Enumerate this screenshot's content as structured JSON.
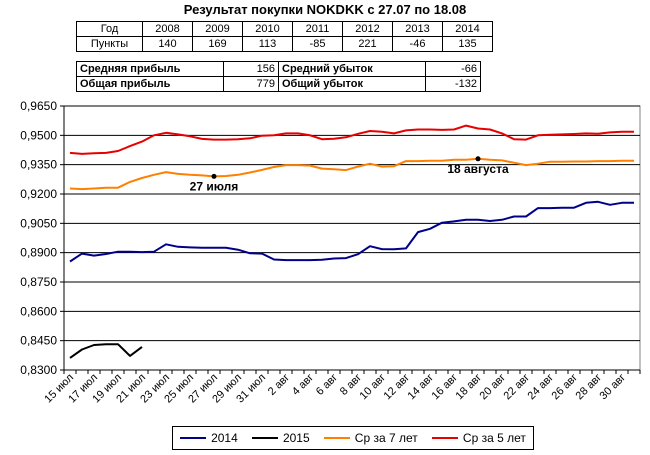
{
  "title": "Результат покупки NOKDKK с 27.07 по 18.08",
  "year_table": {
    "row_headers": [
      "Год",
      "Пункты"
    ],
    "years": [
      "2008",
      "2009",
      "2010",
      "2011",
      "2012",
      "2013",
      "2014"
    ],
    "points": [
      "140",
      "169",
      "113",
      "-85",
      "221",
      "-46",
      "135"
    ]
  },
  "stats": {
    "avg_profit_label": "Средняя прибыль",
    "avg_profit": "156",
    "avg_loss_label": "Средний убыток",
    "avg_loss": "-66",
    "total_profit_label": "Общая прибыль",
    "total_profit": "779",
    "total_loss_label": "Общий убыток",
    "total_loss": "-132"
  },
  "annotations": {
    "start": "27 июля",
    "end": "18 августа"
  },
  "colors": {
    "s2014": "#00008b",
    "s2015": "#000000",
    "s7": "#ff8000",
    "s5": "#e60000"
  },
  "chart_data": {
    "type": "line",
    "ylim": [
      0.83,
      0.965
    ],
    "yticks": [
      "0,8300",
      "0,8450",
      "0,8600",
      "0,8750",
      "0,8900",
      "0,9050",
      "0,9200",
      "0,9350",
      "0,9500",
      "0,9650"
    ],
    "ytick_values": [
      0.83,
      0.845,
      0.86,
      0.875,
      0.89,
      0.905,
      0.92,
      0.935,
      0.95,
      0.965
    ],
    "x": [
      "15 июл",
      "16 июл",
      "17 июл",
      "18 июл",
      "19 июл",
      "20 июл",
      "21 июл",
      "22 июл",
      "23 июл",
      "24 июл",
      "25 июл",
      "26 июл",
      "27 июл",
      "28 июл",
      "29 июл",
      "30 июл",
      "31 июл",
      "1 авг",
      "2 авг",
      "3 авг",
      "4 авг",
      "5 авг",
      "6 авг",
      "7 авг",
      "8 авг",
      "9 авг",
      "10 авг",
      "11 авг",
      "12 авг",
      "13 авг",
      "14 авг",
      "15 авг",
      "16 авг",
      "17 авг",
      "18 авг",
      "19 авг",
      "20 авг",
      "21 авг",
      "22 авг",
      "23 авг",
      "24 авг",
      "25 авг",
      "26 авг",
      "27 авг",
      "28 авг",
      "29 авг",
      "30 авг",
      "31 авг"
    ],
    "xtick_labels": [
      "15 июл",
      "17 июл",
      "19 июл",
      "21 июл",
      "23 июл",
      "25 июл",
      "27 июл",
      "29 июл",
      "31 июл",
      "2 авг",
      "4 авг",
      "6 авг",
      "8 авг",
      "10 авг",
      "12 авг",
      "14 авг",
      "16 авг",
      "18 авг",
      "20 авг",
      "22 авг",
      "24 авг",
      "26 авг",
      "28 авг",
      "30 авг"
    ],
    "series": [
      {
        "name": "2014",
        "color_key": "s2014",
        "values": [
          0.8855,
          0.8895,
          0.8885,
          0.8893,
          0.8905,
          0.8905,
          0.8903,
          0.8905,
          0.8943,
          0.893,
          0.8927,
          0.8925,
          0.8925,
          0.8925,
          0.8915,
          0.8897,
          0.8895,
          0.8865,
          0.8862,
          0.8862,
          0.8862,
          0.8864,
          0.887,
          0.8872,
          0.8892,
          0.8933,
          0.8918,
          0.8917,
          0.8922,
          0.9005,
          0.9022,
          0.9053,
          0.906,
          0.9068,
          0.9068,
          0.9062,
          0.9068,
          0.9085,
          0.9085,
          0.9128,
          0.9128,
          0.913,
          0.913,
          0.9155,
          0.916,
          0.9145,
          0.9155,
          0.9155
        ]
      },
      {
        "name": "2015",
        "color_key": "s2015",
        "values": [
          0.8362,
          0.8405,
          0.8428,
          0.8432,
          0.8432,
          0.8372,
          0.8418,
          null,
          null,
          null,
          null,
          null,
          null,
          null,
          null,
          null,
          null,
          null,
          null,
          null,
          null,
          null,
          null,
          null,
          null,
          null,
          null,
          null,
          null,
          null,
          null,
          null,
          null,
          null,
          null,
          null,
          null,
          null,
          null,
          null,
          null,
          null,
          null,
          null,
          null,
          null,
          null,
          null
        ]
      },
      {
        "name": "Ср за 7 лет",
        "color_key": "s7",
        "values": [
          0.9228,
          0.9225,
          0.9228,
          0.9232,
          0.9232,
          0.9262,
          0.9282,
          0.9298,
          0.9312,
          0.9303,
          0.9298,
          0.9295,
          0.929,
          0.9292,
          0.9298,
          0.931,
          0.9323,
          0.9338,
          0.9348,
          0.9348,
          0.9345,
          0.933,
          0.9327,
          0.9322,
          0.934,
          0.9355,
          0.934,
          0.9342,
          0.9368,
          0.9368,
          0.937,
          0.937,
          0.9375,
          0.9375,
          0.938,
          0.9375,
          0.9372,
          0.936,
          0.9348,
          0.9355,
          0.9365,
          0.9365,
          0.9366,
          0.9366,
          0.9368,
          0.9368,
          0.937,
          0.937
        ]
      },
      {
        "name": "Ср за 5 лет",
        "color_key": "s5",
        "values": [
          0.941,
          0.9405,
          0.9408,
          0.941,
          0.942,
          0.9445,
          0.9468,
          0.95,
          0.9513,
          0.9505,
          0.9495,
          0.9482,
          0.9478,
          0.9478,
          0.948,
          0.9485,
          0.9498,
          0.95,
          0.951,
          0.951,
          0.95,
          0.948,
          0.9483,
          0.949,
          0.9508,
          0.9522,
          0.9518,
          0.951,
          0.9525,
          0.953,
          0.953,
          0.9528,
          0.953,
          0.955,
          0.9535,
          0.953,
          0.951,
          0.948,
          0.9478,
          0.95,
          0.9503,
          0.9505,
          0.9507,
          0.951,
          0.9508,
          0.9515,
          0.9518,
          0.9518
        ]
      }
    ],
    "markers": [
      {
        "series": "Ср за 7 лет",
        "x_index": 12,
        "label_key": "start"
      },
      {
        "series": "Ср за 7 лет",
        "x_index": 34,
        "label_key": "end"
      }
    ],
    "grid": "horizontal",
    "legend_position": "bottom"
  }
}
